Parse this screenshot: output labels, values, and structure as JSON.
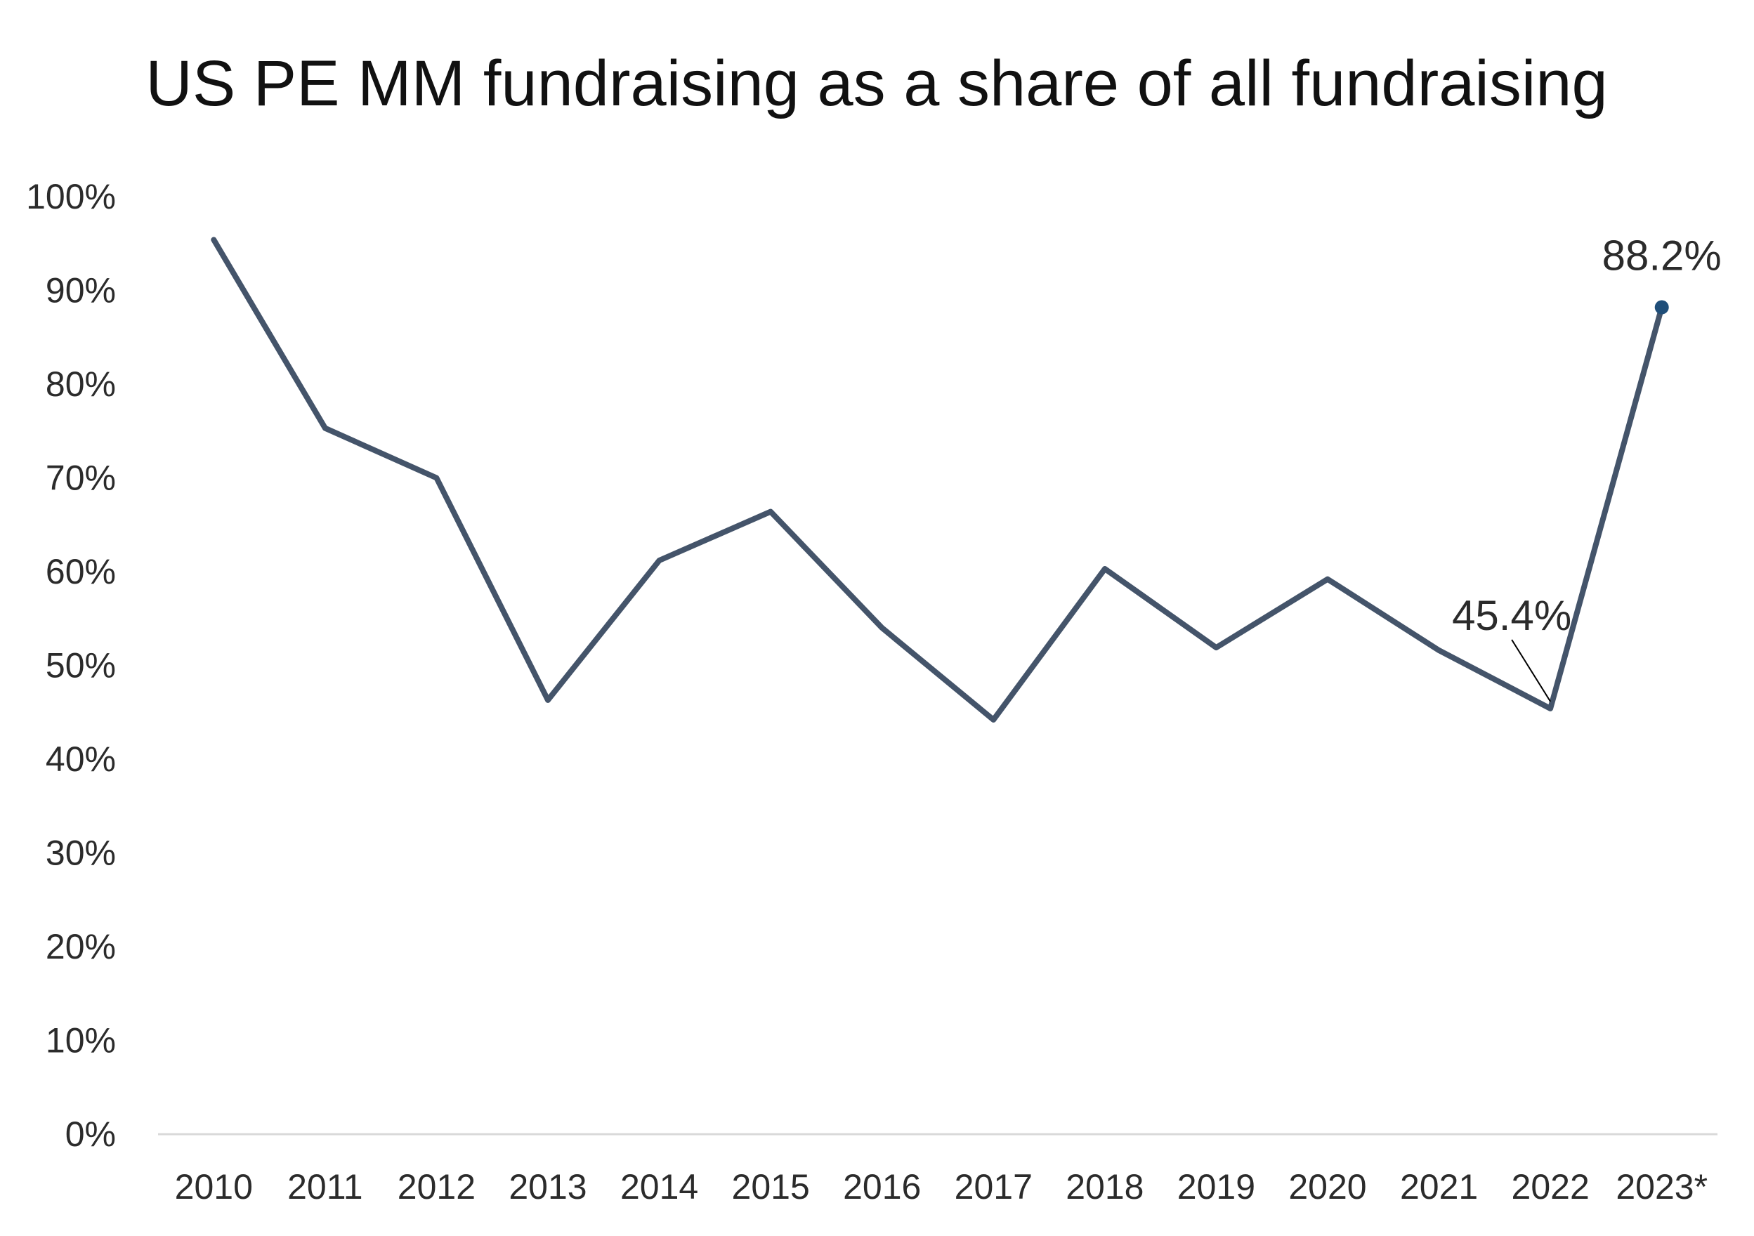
{
  "chart_data": {
    "type": "line",
    "title": "US PE MM fundraising as a share of all fundraising",
    "xlabel": "",
    "ylabel": "",
    "categories": [
      "2010",
      "2011",
      "2012",
      "2013",
      "2014",
      "2015",
      "2016",
      "2017",
      "2018",
      "2019",
      "2020",
      "2021",
      "2022",
      "2023*"
    ],
    "series": [
      {
        "values": [
          95.4,
          75.3,
          70.0,
          46.3,
          61.2,
          66.4,
          54.0,
          44.2,
          60.3,
          51.9,
          59.2,
          51.6,
          45.4,
          88.2
        ]
      }
    ],
    "ylim": [
      0,
      100
    ],
    "y_ticks": [
      0,
      10,
      20,
      30,
      40,
      50,
      60,
      70,
      80,
      90,
      100
    ],
    "y_tick_labels": [
      "0%",
      "10%",
      "20%",
      "30%",
      "40%",
      "50%",
      "60%",
      "70%",
      "80%",
      "90%",
      "100%"
    ],
    "data_labels": [
      {
        "index": 12,
        "text": "45.4%"
      },
      {
        "index": 13,
        "text": "88.2%"
      }
    ],
    "grid": false,
    "legend": "none",
    "colors": {
      "line": "#44546a",
      "marker": "#1f4e79",
      "axis": "#d9d9d9",
      "leader": "#000000"
    }
  }
}
